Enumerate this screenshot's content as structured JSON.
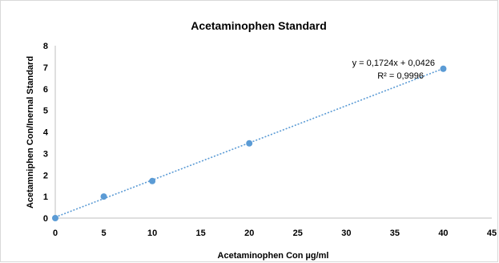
{
  "chart_data": {
    "type": "scatter",
    "title": "Acetaminophen Standard",
    "xlabel": "Acetaminophen Con µg/ml",
    "ylabel": "Acetamniphen Con/Inernal Standard",
    "xlim": [
      0,
      45
    ],
    "ylim": [
      0,
      8
    ],
    "xticks": [
      0,
      5,
      10,
      15,
      20,
      25,
      30,
      35,
      40,
      45
    ],
    "yticks": [
      0,
      1,
      2,
      3,
      4,
      5,
      6,
      7,
      8
    ],
    "grid": false,
    "legend": "none",
    "series": [
      {
        "x": [
          0,
          5,
          10,
          20,
          40
        ],
        "y": [
          0.0,
          1.0,
          1.72,
          3.47,
          6.93
        ],
        "color": "#5b9bd5"
      }
    ],
    "trendline": {
      "type": "linear",
      "slope": 0.1724,
      "intercept": 0.0426,
      "style": "dotted",
      "color": "#5b9bd5",
      "equation": "y = 0,1724x + 0,0426",
      "r2_label": "R² = 0,9996"
    }
  }
}
